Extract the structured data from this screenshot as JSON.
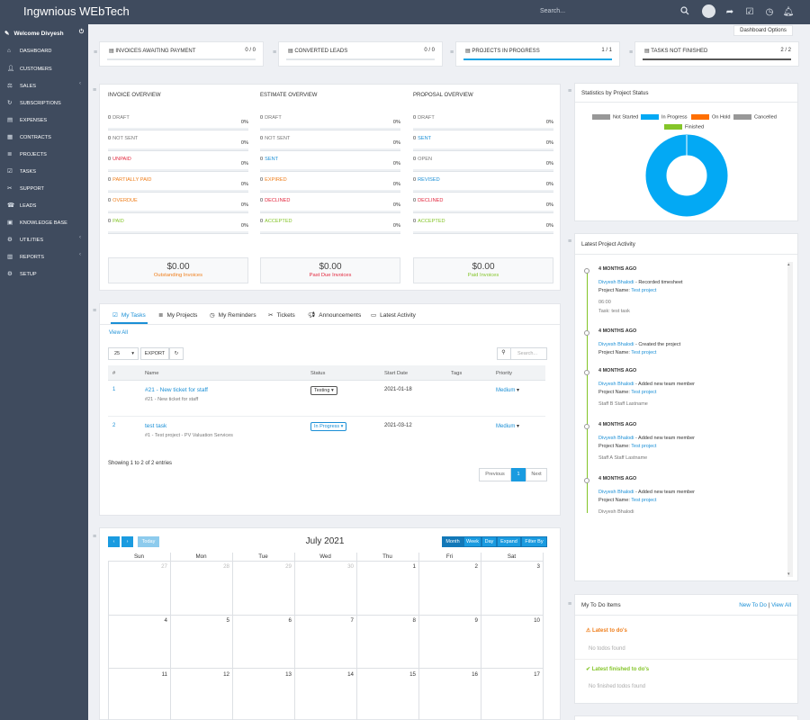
{
  "app": {
    "brand": "Ingwnious WEbTech",
    "search_placeholder": "Search...",
    "dashboard_options": "Dashboard Options"
  },
  "sidebar": {
    "welcome": "Welcome Divyesh",
    "items": [
      {
        "label": "Dashboard",
        "icon": "home-icon"
      },
      {
        "label": "Customers",
        "icon": "user-icon"
      },
      {
        "label": "Sales",
        "icon": "balance-icon",
        "chevron": true
      },
      {
        "label": "Subscriptions",
        "icon": "refresh-icon"
      },
      {
        "label": "Expenses",
        "icon": "file-icon"
      },
      {
        "label": "Contracts",
        "icon": "contract-icon"
      },
      {
        "label": "Projects",
        "icon": "bars-icon"
      },
      {
        "label": "Tasks",
        "icon": "tasks-icon"
      },
      {
        "label": "Support",
        "icon": "ticket-icon"
      },
      {
        "label": "Leads",
        "icon": "tty-icon"
      },
      {
        "label": "Knowledge Base",
        "icon": "folder-icon"
      },
      {
        "label": "Utilities",
        "icon": "cogs-icon",
        "chevron": true
      },
      {
        "label": "Reports",
        "icon": "chart-icon",
        "chevron": true
      },
      {
        "label": "Setup",
        "icon": "gear-icon"
      }
    ]
  },
  "stats": [
    {
      "label": "Invoices Awaiting Payment",
      "value": "0 / 0",
      "progress": 0,
      "color": "#dfe3e8"
    },
    {
      "label": "Converted Leads",
      "value": "0 / 0",
      "progress": 0,
      "color": "#dfe3e8"
    },
    {
      "label": "Projects In Progress",
      "value": "1 / 1",
      "progress": 1,
      "color": "#1ca4e4"
    },
    {
      "label": "Tasks Not Finished",
      "value": "2 / 2",
      "progress": 1,
      "color": "#585858"
    }
  ],
  "overview": {
    "columns": [
      {
        "title": "Invoice Overview",
        "rows": [
          {
            "count": "0",
            "label": "Draft",
            "pct": "0%",
            "color": "#777"
          },
          {
            "count": "0",
            "label": "Not Sent",
            "pct": "0%",
            "color": "#777"
          },
          {
            "count": "0",
            "label": "Unpaid",
            "pct": "0%",
            "color": "#e3283e"
          },
          {
            "count": "0",
            "label": "Partially Paid",
            "pct": "0%",
            "color": "#ef7e1b"
          },
          {
            "count": "0",
            "label": "Overdue",
            "pct": "0%",
            "color": "#ef7e1b"
          },
          {
            "count": "0",
            "label": "Paid",
            "pct": "0%",
            "color": "#84c529"
          }
        ]
      },
      {
        "title": "Estimate Overview",
        "rows": [
          {
            "count": "0",
            "label": "Draft",
            "pct": "0%",
            "color": "#777"
          },
          {
            "count": "0",
            "label": "Not Sent",
            "pct": "0%",
            "color": "#777"
          },
          {
            "count": "0",
            "label": "Sent",
            "pct": "0%",
            "color": "#1a8fd6"
          },
          {
            "count": "0",
            "label": "Expired",
            "pct": "0%",
            "color": "#ef7e1b"
          },
          {
            "count": "0",
            "label": "Declined",
            "pct": "0%",
            "color": "#e3283e"
          },
          {
            "count": "0",
            "label": "Accepted",
            "pct": "0%",
            "color": "#84c529"
          }
        ]
      },
      {
        "title": "Proposal Overview",
        "rows": [
          {
            "count": "0",
            "label": "Draft",
            "pct": "0%",
            "color": "#777"
          },
          {
            "count": "0",
            "label": "Sent",
            "pct": "0%",
            "color": "#1a8fd6"
          },
          {
            "count": "0",
            "label": "Open",
            "pct": "0%",
            "color": "#777"
          },
          {
            "count": "0",
            "label": "Revised",
            "pct": "0%",
            "color": "#1a8fd6"
          },
          {
            "count": "0",
            "label": "Declined",
            "pct": "0%",
            "color": "#e3283e"
          },
          {
            "count": "0",
            "label": "Accepted",
            "pct": "0%",
            "color": "#84c529"
          }
        ]
      }
    ],
    "summary": [
      {
        "amount": "$0.00",
        "label": "Outstanding Invoices",
        "color": "#ef7e1b"
      },
      {
        "amount": "$0.00",
        "label": "Past Due Invoices",
        "color": "#e3283e"
      },
      {
        "amount": "$0.00",
        "label": "Paid Invoices",
        "color": "#84c529"
      }
    ]
  },
  "tabs": [
    {
      "label": "My Tasks",
      "icon": "tasks-icon",
      "active": true
    },
    {
      "label": "My Projects",
      "icon": "bars-icon"
    },
    {
      "label": "My Reminders",
      "icon": "clock-icon"
    },
    {
      "label": "Tickets",
      "icon": "ticket-icon"
    },
    {
      "label": "Announcements",
      "icon": "bullhorn-icon"
    },
    {
      "label": "Latest Activity",
      "icon": "window-icon"
    }
  ],
  "tasks": {
    "view_all": "View All",
    "page_size": "25",
    "export": "EXPORT",
    "search_placeholder": "Search...",
    "headers": [
      "#",
      "Name",
      "Status",
      "Start Date",
      "Tags",
      "Priority"
    ],
    "rows": [
      {
        "id": "1",
        "name": "#21 - New ticket for staff",
        "sub": "#21 - New ticket for staff",
        "status": "Testing",
        "start": "2021-01-18",
        "priority": "Medium"
      },
      {
        "id": "2",
        "name": "test task",
        "sub": "#1 - Test project - PV Valuation Services",
        "status": "In Progress",
        "start": "2021-03-12",
        "priority": "Medium"
      }
    ],
    "showing": "Showing 1 to 2 of 2 entries",
    "prev": "Previous",
    "page": "1",
    "next": "Next"
  },
  "calendar": {
    "title": "July 2021",
    "today": "Today",
    "views": [
      "Month",
      "Week",
      "Day",
      "Expand",
      "Filter By"
    ],
    "days": [
      "Sun",
      "Mon",
      "Tue",
      "Wed",
      "Thu",
      "Fri",
      "Sat"
    ],
    "weeks": [
      [
        "27",
        "28",
        "29",
        "30",
        "1",
        "2",
        "3"
      ],
      [
        "4",
        "5",
        "6",
        "7",
        "8",
        "9",
        "10"
      ],
      [
        "11",
        "12",
        "13",
        "14",
        "15",
        "16",
        "17"
      ]
    ]
  },
  "project_status": {
    "title": "Statistics by Project Status",
    "legend": [
      {
        "label": "Not Started",
        "color": "#989898"
      },
      {
        "label": "In Progress",
        "color": "#03a9f4"
      },
      {
        "label": "On Hold",
        "color": "#ff6f00"
      },
      {
        "label": "Cancelled",
        "color": "#989898"
      },
      {
        "label": "Finished",
        "color": "#84c529"
      }
    ]
  },
  "activity": {
    "title": "Latest Project Activity",
    "items": [
      {
        "time": "4 months ago",
        "user": "Divyesh Bhalodi",
        "action": " - Recorded timesheet",
        "project_label": "Project Name: ",
        "project": "Test project",
        "extra": [
          "06:00",
          "Task: test task"
        ]
      },
      {
        "time": "4 months ago",
        "user": "Divyesh Bhalodi",
        "action": " - Created the project",
        "project_label": "Project Name: ",
        "project": "Test project",
        "extra": []
      },
      {
        "time": "4 months ago",
        "user": "Divyesh Bhalodi",
        "action": " - Added new team member",
        "project_label": "Project Name: ",
        "project": "Test project",
        "extra": [
          "Staff B Staff Lastname"
        ]
      },
      {
        "time": "4 months ago",
        "user": "Divyesh Bhalodi",
        "action": " - Added new team member",
        "project_label": "Project Name: ",
        "project": "Test project",
        "extra": [
          "Staff A Staff Lastname"
        ]
      },
      {
        "time": "4 months ago",
        "user": "Divyesh Bhalodi",
        "action": " - Added new team member",
        "project_label": "Project Name: ",
        "project": "Test project",
        "extra": [
          "Divyesh Bhalodi"
        ]
      }
    ]
  },
  "todo": {
    "title": "My To Do Items",
    "new": "New To Do",
    "sep": " | ",
    "view_all": "View All",
    "latest": "Latest to do's",
    "none": "No todos found",
    "finished": "Latest finished to do's",
    "none_finished": "No finished todos found"
  }
}
